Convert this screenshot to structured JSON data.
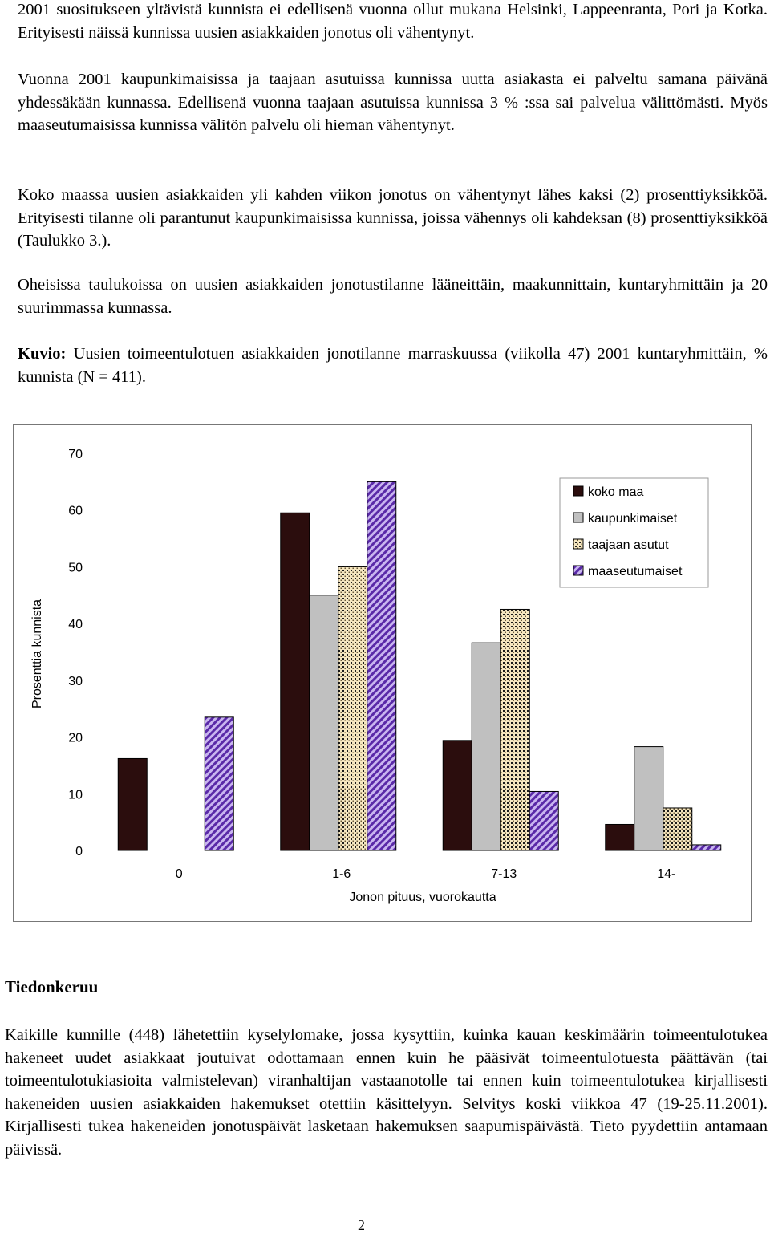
{
  "paragraphs": {
    "p1": "2001 suositukseen yltävistä kunnista ei edellisenä vuonna ollut mukana Helsinki, Lappeenranta, Pori ja Kotka. Erityisesti näissä kunnissa uusien asiakkaiden jonotus oli vähentynyt.",
    "p2": "Vuonna 2001 kaupunkimaisissa ja taajaan asutuissa kunnissa uutta asiakasta ei palveltu samana päivänä yhdessäkään kunnassa. Edellisenä vuonna taajaan asutuissa kunnissa 3 % :ssa sai palvelua välittömästi. Myös maaseutumaisissa kunnissa välitön palvelu oli hieman vähentynyt.",
    "p3": "Koko maassa uusien asiakkaiden yli kahden viikon jonotus on vähentynyt lähes kaksi (2) prosenttiyksikköä. Erityisesti tilanne oli parantunut kaupunkimaisissa kunnissa, joissa vähennys oli kahdeksan (8) prosenttiyksikköä (Taulukko 3.).",
    "p4": "Oheisissa taulukoissa on uusien asiakkaiden jonotustilanne lääneittäin, maakunnittain, kuntaryhmittäin ja 20 suurimmassa kunnassa."
  },
  "figure_caption": {
    "label": "Kuvio:",
    "text": "Uusien toimeentulotuen asiakkaiden jonotilanne marraskuussa (viikolla 47) 2001 kuntaryhmittäin, % kunnista (N = 411)."
  },
  "chart_data": {
    "type": "bar",
    "categories": [
      "0",
      "1-6",
      "7-13",
      "14-"
    ],
    "series": [
      {
        "name": "koko maa",
        "values": [
          16.2,
          59.5,
          19.4,
          4.6
        ],
        "fill": "#2b0d0d"
      },
      {
        "name": "kaupunkimaiset",
        "values": [
          0,
          45.0,
          36.6,
          18.3
        ],
        "fill": "#c0c0c0"
      },
      {
        "name": "taajaan asutut",
        "values": [
          0,
          50.0,
          42.5,
          7.5
        ],
        "fill": "#f2dfb0"
      },
      {
        "name": "maaseutumaiset",
        "values": [
          23.5,
          65.0,
          10.4,
          1.0
        ],
        "fill": "#b59ae0"
      }
    ],
    "yticks": [
      "0",
      "10",
      "20",
      "30",
      "40",
      "50",
      "60",
      "70"
    ],
    "ylim": [
      0,
      70
    ],
    "xlabel": "Jonon pituus, vuorokautta",
    "ylabel": "Prosenttia kunnista",
    "grid": false,
    "legend_position": "top-right"
  },
  "section": {
    "heading": "Tiedonkeruu",
    "body": "Kaikille kunnille (448) lähetettiin kyselylomake, jossa kysyttiin, kuinka kauan keskimäärin toimeentulotukea hakeneet uudet asiakkaat joutuivat odottamaan ennen kuin he pääsivät toimeentulotuesta päättävän (tai toimeentulotukiasioita valmistelevan) viranhaltijan vastaanotolle tai ennen kuin toimeentulotukea kirjallisesti hakeneiden uusien asiakkaiden hakemukset otettiin käsittelyyn. Selvitys koski viikkoa 47 (19-25.11.2001). Kirjallisesti tukea hakeneiden jonotuspäivät lasketaan hakemuksen saapumispäivästä. Tieto pyydettiin antamaan päivissä."
  },
  "page_number": "2"
}
